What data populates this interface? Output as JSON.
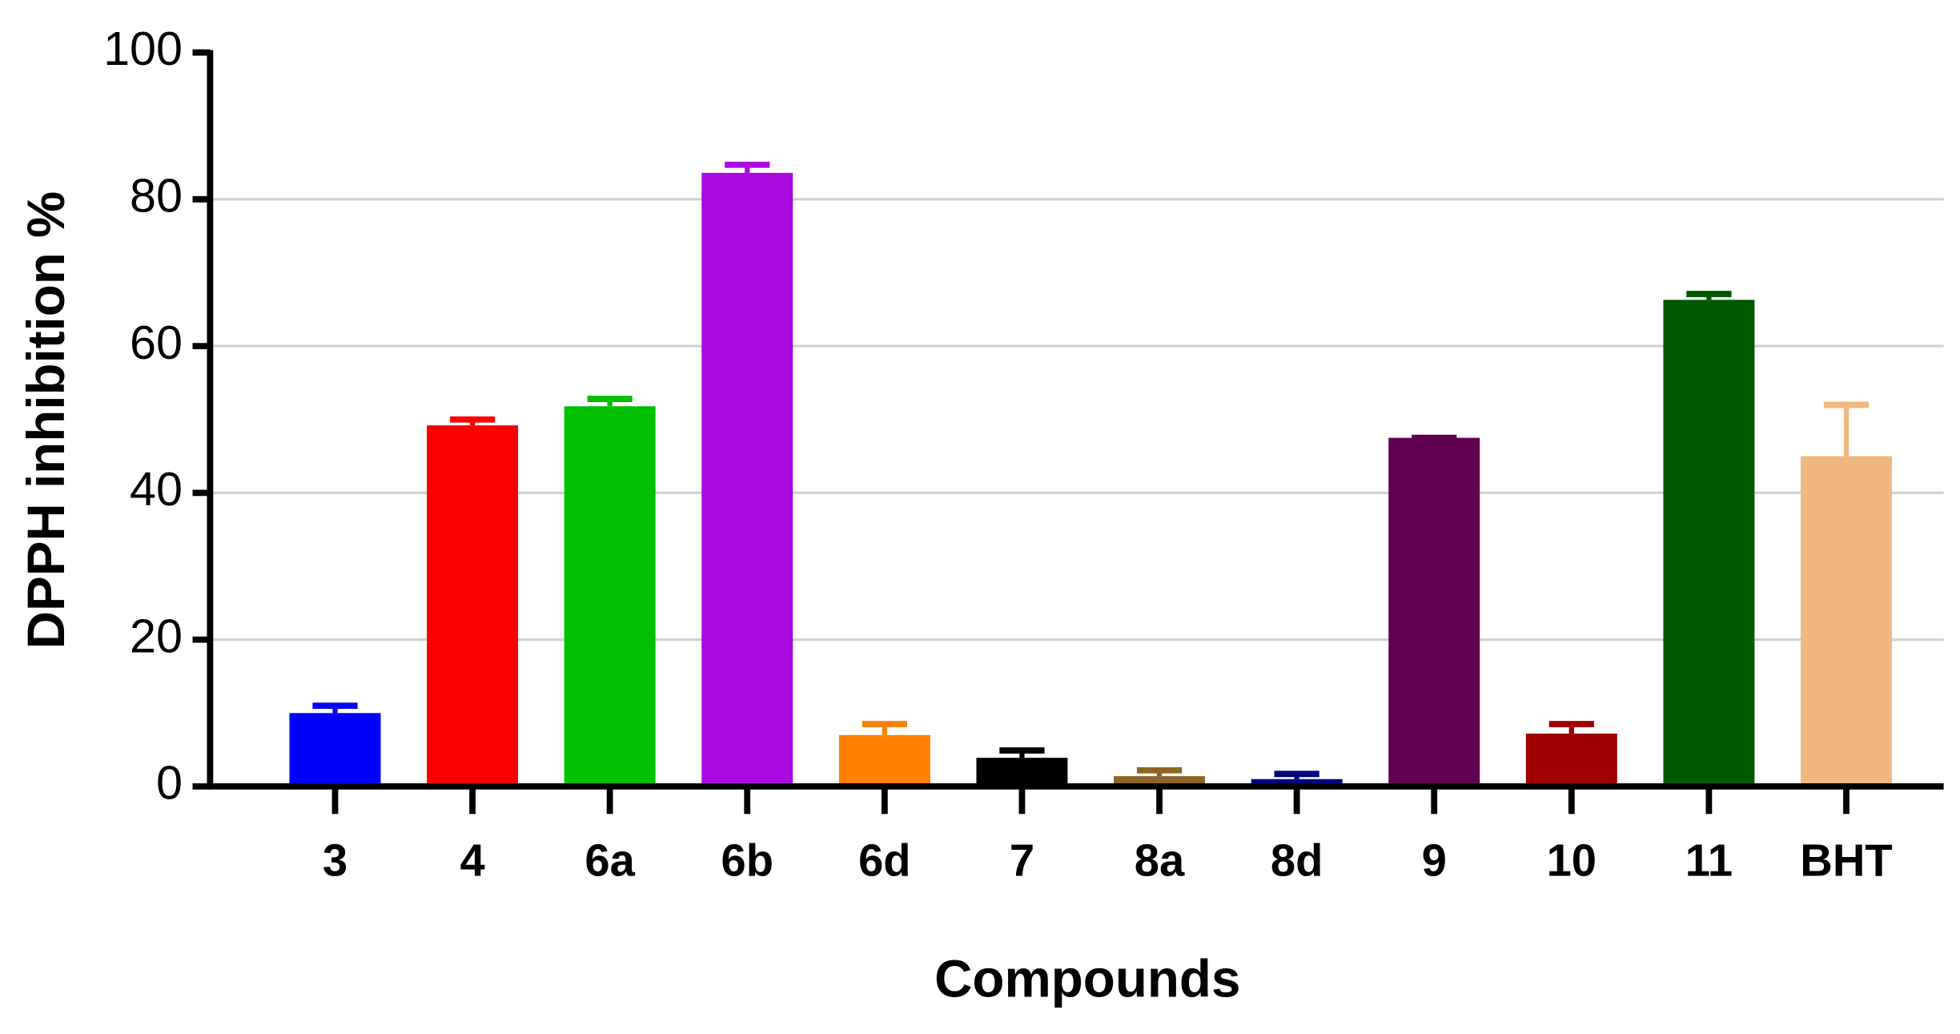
{
  "chart_data": {
    "type": "bar",
    "xlabel": "Compounds",
    "ylabel": "DPPH inhibition %",
    "categories": [
      "3",
      "4",
      "6a",
      "6b",
      "6d",
      "7",
      "8a",
      "8d",
      "9",
      "10",
      "11",
      "BHT"
    ],
    "values": [
      10,
      49.2,
      51.8,
      83.6,
      7,
      3.9,
      1.4,
      1.0,
      47.5,
      7.2,
      66.3,
      45
    ],
    "errors": [
      1,
      0.8,
      1,
      1.1,
      1.5,
      1,
      0.8,
      0.7,
      0,
      1.3,
      0.8,
      7
    ],
    "colors": [
      "#0000ff",
      "#ff0000",
      "#00c000",
      "#a80ae0",
      "#ff8000",
      "#000000",
      "#8c6428",
      "#000080",
      "#600050",
      "#a00000",
      "#005800",
      "#f0b880"
    ],
    "ylim": [
      0,
      100
    ],
    "yticks": [
      0,
      20,
      40,
      60,
      80,
      100
    ],
    "grid": true
  }
}
